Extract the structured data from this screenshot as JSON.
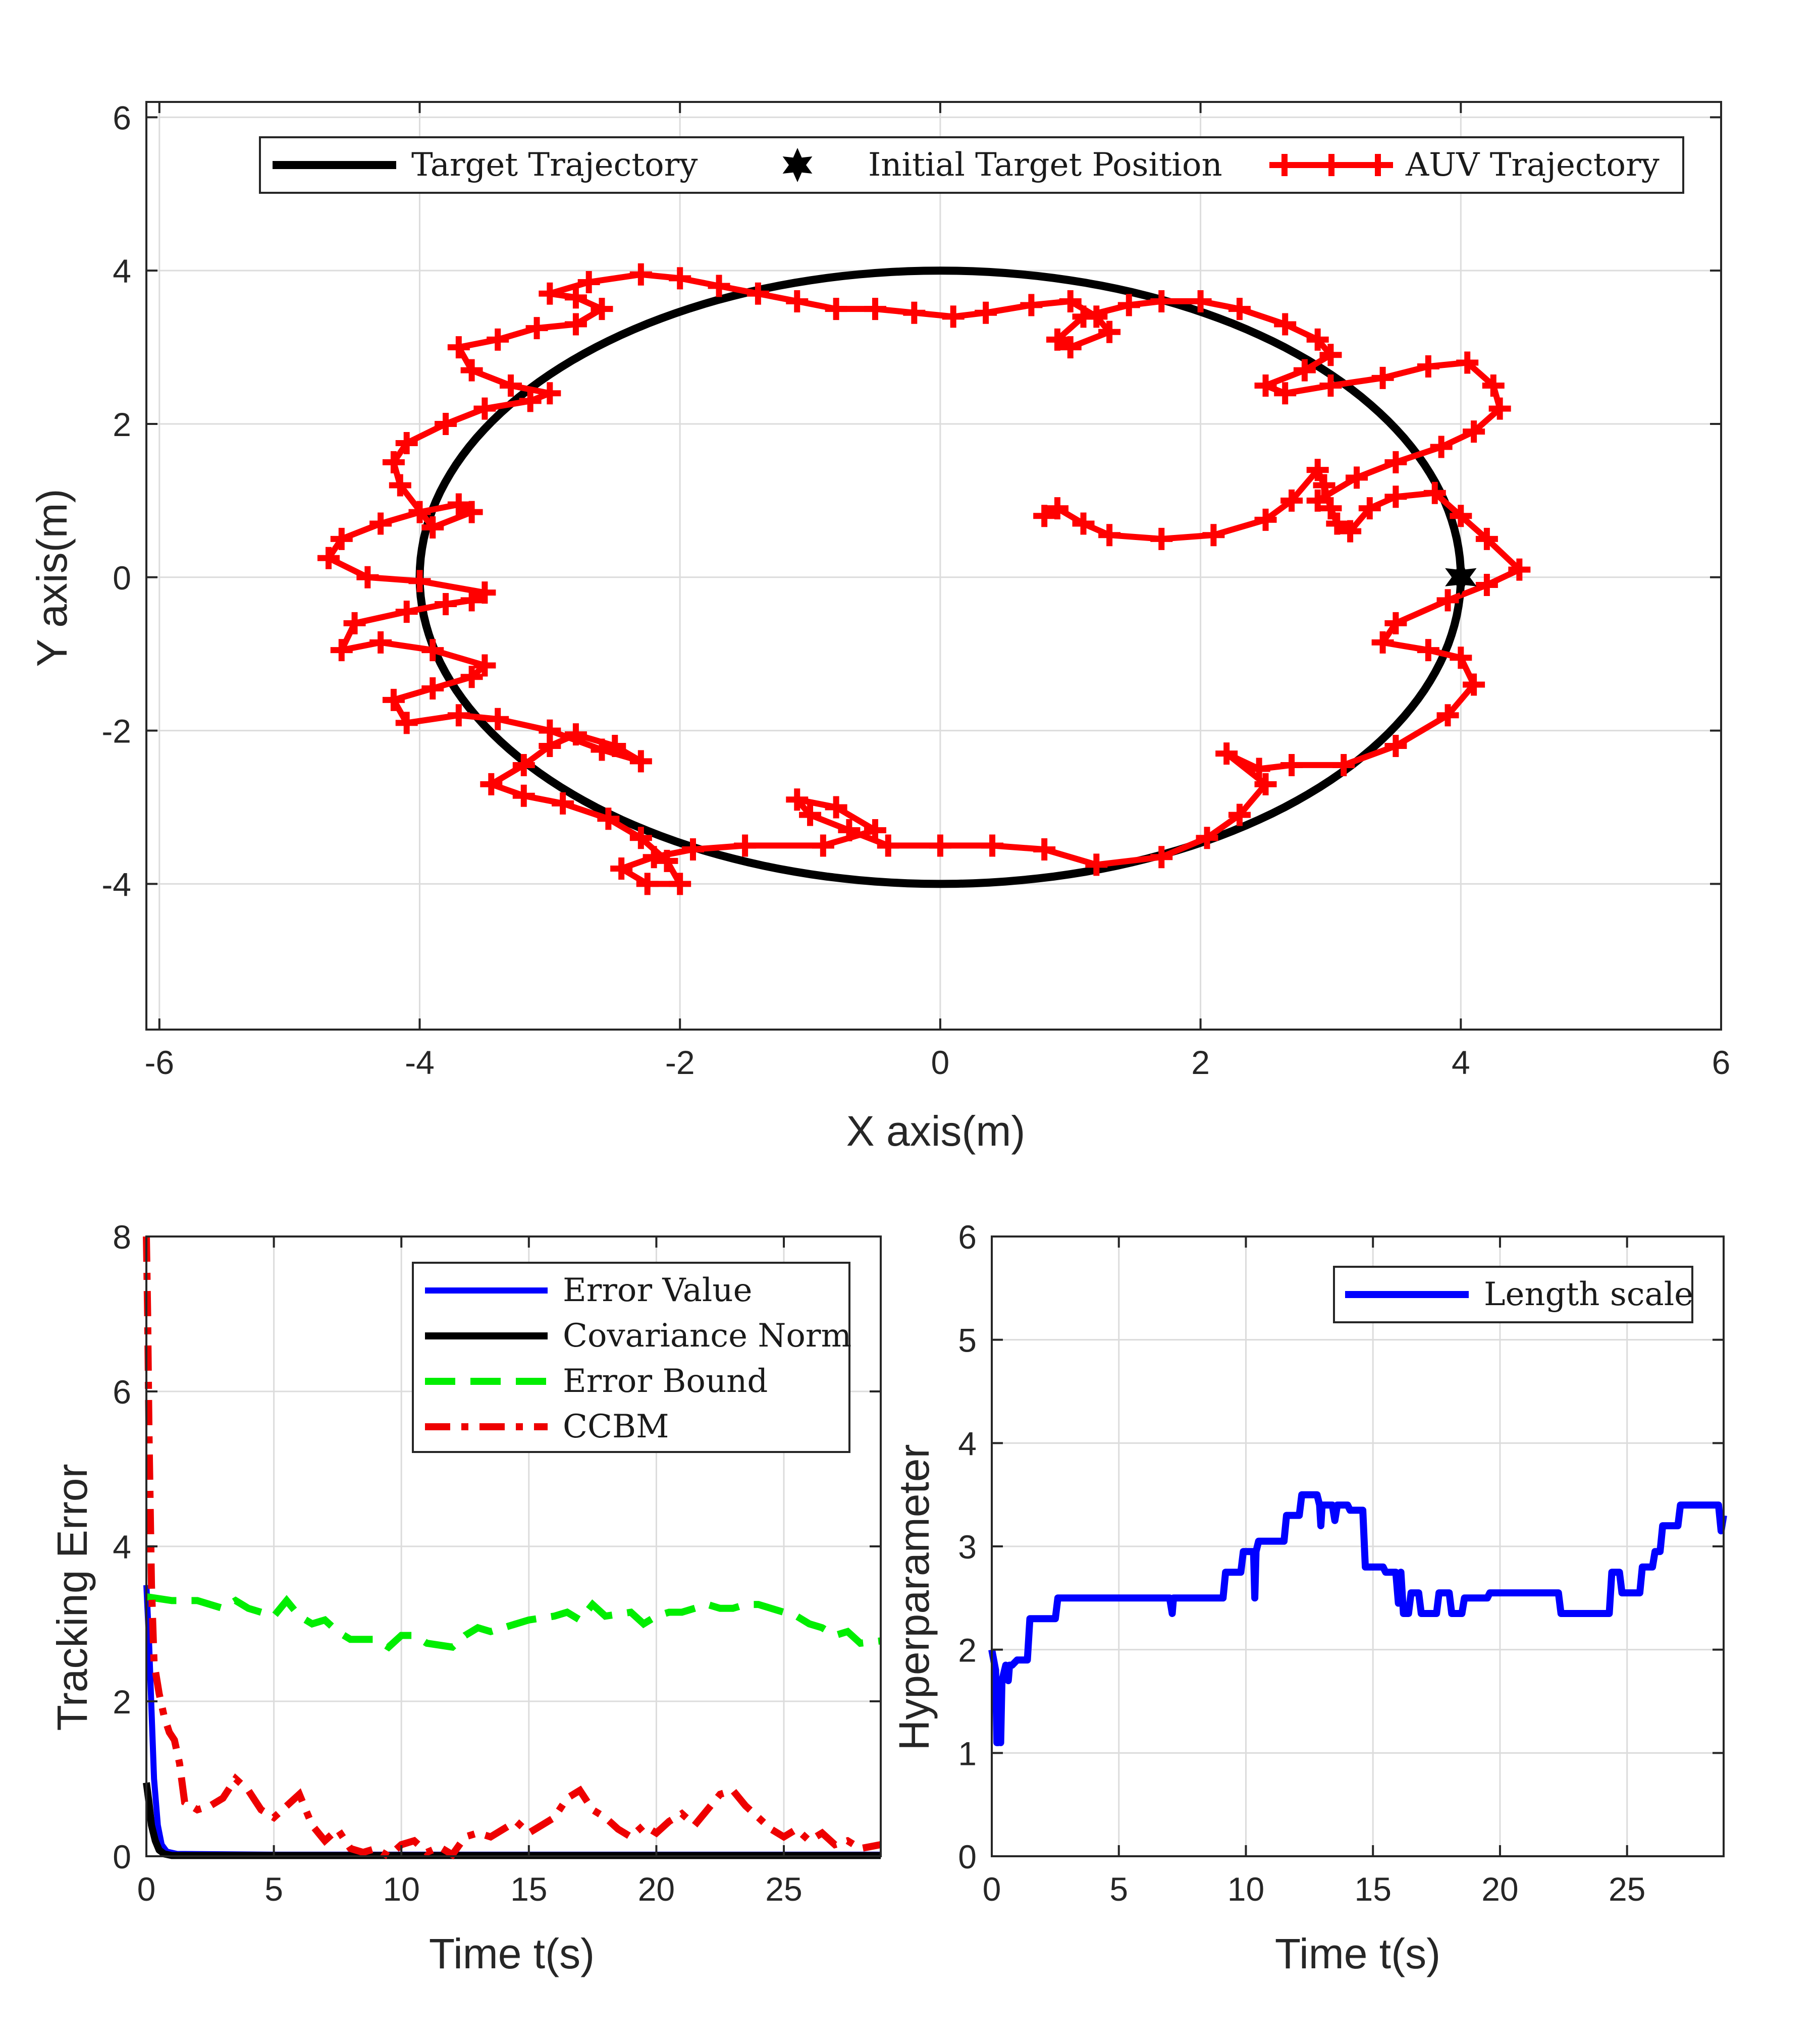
{
  "chart_data": [
    {
      "id": "trajectory",
      "type": "line",
      "xlabel": "X axis(m)",
      "ylabel": "Y axis(m)",
      "xlim": [
        -6.1,
        6
      ],
      "ylim": [
        -5.9,
        6.2
      ],
      "xticks": [
        -6,
        -4,
        -2,
        0,
        2,
        4,
        6
      ],
      "yticks": [
        -4,
        -2,
        0,
        2,
        4,
        6
      ],
      "xtick_labels": [
        "-6",
        "-4",
        "-2",
        "0",
        "2",
        "4",
        "6"
      ],
      "ytick_labels": [
        "-4",
        "-2",
        "0",
        "2",
        "4",
        "6"
      ],
      "grid": true,
      "legend": {
        "position": "top",
        "entries": [
          "Target Trajectory",
          "Initial Target Position",
          "AUV Trajectory"
        ]
      },
      "series": [
        {
          "name": "Target Trajectory",
          "color": "#000000",
          "shape": "circle",
          "radius": 4
        },
        {
          "name": "Initial Target Position",
          "color": "#000000",
          "point": [
            4,
            0
          ]
        },
        {
          "name": "AUV Trajectory",
          "color": "#ff0000",
          "x": [
            0.8,
            0.9,
            1.1,
            1.3,
            1.7,
            2.1,
            2.5,
            2.7,
            2.9,
            2.95,
            3.0,
            3.05,
            3.15,
            3.3,
            3.5,
            3.8,
            4.0,
            4.2,
            4.45,
            4.2,
            3.9,
            3.5,
            3.4,
            3.75,
            4.0,
            4.1,
            3.9,
            3.5,
            3.1,
            2.7,
            2.45,
            2.2,
            2.5,
            2.3,
            2.05,
            1.7,
            1.2,
            0.8,
            0.4,
            0.0,
            -0.4,
            -0.7,
            -1.0,
            -1.1,
            -0.8,
            -0.5,
            -0.9,
            -1.5,
            -1.9,
            -2.2,
            -2.45,
            -2.25,
            -2.0,
            -2.1,
            -2.3,
            -2.55,
            -2.9,
            -3.2,
            -3.45,
            -3.2,
            -3.0,
            -2.8,
            -2.5,
            -2.3,
            -2.6,
            -3.0,
            -3.4,
            -3.7,
            -4.1,
            -4.2,
            -3.9,
            -3.6,
            -3.5,
            -3.9,
            -4.3,
            -4.6,
            -4.5,
            -4.1,
            -3.8,
            -3.6,
            -3.5,
            -4.0,
            -4.4,
            -4.7,
            -4.6,
            -4.3,
            -4.0,
            -3.7,
            -3.6,
            -3.9,
            -4.15,
            -4.2,
            -4.1,
            -3.8,
            -3.5,
            -3.15,
            -3.0,
            -3.3,
            -3.6,
            -3.7,
            -3.4,
            -3.1,
            -2.8,
            -2.6,
            -2.8,
            -3.0,
            -2.7,
            -2.3,
            -2.0,
            -1.7,
            -1.4,
            -1.1,
            -0.8,
            -0.5,
            -0.2,
            0.1,
            0.35,
            0.7,
            1.0,
            1.2,
            1.3,
            1.0,
            0.9,
            1.1,
            1.45,
            1.7,
            2.0,
            2.3,
            2.65,
            2.9,
            3.0,
            2.8,
            2.5,
            2.65,
            3.0,
            3.4,
            3.75,
            4.05,
            4.25,
            4.3,
            4.1,
            3.85,
            3.5,
            3.2,
            2.9
          ],
          "y": [
            0.8,
            0.9,
            0.7,
            0.55,
            0.5,
            0.55,
            0.75,
            1.0,
            1.4,
            1.2,
            0.9,
            0.7,
            0.6,
            0.9,
            1.05,
            1.1,
            0.8,
            0.5,
            0.1,
            -0.1,
            -0.3,
            -0.6,
            -0.85,
            -0.95,
            -1.05,
            -1.4,
            -1.8,
            -2.2,
            -2.45,
            -2.45,
            -2.5,
            -2.3,
            -2.7,
            -3.1,
            -3.4,
            -3.65,
            -3.75,
            -3.55,
            -3.5,
            -3.5,
            -3.5,
            -3.3,
            -3.1,
            -2.9,
            -3.0,
            -3.3,
            -3.5,
            -3.5,
            -3.55,
            -3.65,
            -3.8,
            -4.0,
            -4.0,
            -3.7,
            -3.4,
            -3.15,
            -2.95,
            -2.85,
            -2.7,
            -2.45,
            -2.2,
            -2.05,
            -2.2,
            -2.4,
            -2.25,
            -2.0,
            -1.85,
            -1.8,
            -1.9,
            -1.6,
            -1.45,
            -1.3,
            -1.15,
            -0.95,
            -0.85,
            -0.95,
            -0.6,
            -0.45,
            -0.35,
            -0.3,
            -0.2,
            -0.05,
            0.0,
            0.25,
            0.5,
            0.7,
            0.85,
            0.95,
            0.85,
            0.65,
            1.2,
            1.5,
            1.75,
            2.0,
            2.2,
            2.3,
            2.4,
            2.5,
            2.7,
            3.0,
            3.1,
            3.25,
            3.3,
            3.5,
            3.65,
            3.7,
            3.85,
            3.95,
            3.9,
            3.8,
            3.7,
            3.6,
            3.5,
            3.5,
            3.45,
            3.4,
            3.45,
            3.55,
            3.6,
            3.4,
            3.2,
            3.0,
            3.1,
            3.4,
            3.55,
            3.6,
            3.6,
            3.5,
            3.3,
            3.1,
            2.9,
            2.7,
            2.5,
            2.4,
            2.5,
            2.6,
            2.75,
            2.8,
            2.5,
            2.2,
            1.9,
            1.7,
            1.5,
            1.3,
            1.0
          ]
        }
      ]
    },
    {
      "id": "tracking-error",
      "type": "line",
      "xlabel": "Time t(s)",
      "ylabel": "Tracking Error",
      "xlim": [
        0,
        28.8
      ],
      "ylim": [
        0,
        8
      ],
      "xticks": [
        0,
        5,
        10,
        15,
        20,
        25
      ],
      "yticks": [
        0,
        2,
        4,
        6,
        8
      ],
      "xtick_labels": [
        "0",
        "5",
        "10",
        "15",
        "20",
        "25"
      ],
      "ytick_labels": [
        "0",
        "2",
        "4",
        "6",
        "8"
      ],
      "grid": true,
      "legend": {
        "position": "top-right",
        "entries": [
          "Error Value",
          "Covariance Norm",
          "Error Bound",
          "CCBM"
        ]
      },
      "series": [
        {
          "name": "Error Value",
          "color": "#0000ff",
          "style": "solid",
          "x": [
            0,
            0.1,
            0.2,
            0.3,
            0.45,
            0.6,
            0.8,
            1.2,
            5,
            28.8
          ],
          "y": [
            3.5,
            2.8,
            1.9,
            1.0,
            0.4,
            0.15,
            0.06,
            0.03,
            0.02,
            0.02
          ]
        },
        {
          "name": "Covariance Norm",
          "color": "#000000",
          "style": "solid",
          "x": [
            0,
            0.1,
            0.2,
            0.35,
            0.5,
            0.7,
            1.0,
            28.8
          ],
          "y": [
            0.95,
            0.7,
            0.4,
            0.2,
            0.08,
            0.03,
            0.01,
            0.01
          ]
        },
        {
          "name": "Error Bound",
          "color": "#00ee00",
          "style": "dashed",
          "x": [
            0,
            1,
            2,
            3,
            3.5,
            4,
            5,
            5.5,
            6,
            6.5,
            7,
            7.5,
            8,
            9,
            9.5,
            10,
            10.5,
            11,
            12,
            12.5,
            13,
            13.5,
            14,
            15,
            16,
            16.5,
            17,
            17.5,
            18,
            19,
            19.5,
            20,
            20.5,
            21,
            22,
            22.5,
            23,
            23.5,
            24,
            25,
            25.5,
            26,
            26.5,
            27,
            27.5,
            28,
            28.8
          ],
          "y": [
            3.35,
            3.3,
            3.3,
            3.2,
            3.3,
            3.2,
            3.1,
            3.3,
            3.1,
            3.0,
            3.05,
            2.9,
            2.8,
            2.8,
            2.7,
            2.85,
            2.85,
            2.75,
            2.7,
            2.85,
            2.95,
            2.9,
            2.95,
            3.05,
            3.1,
            3.15,
            3.05,
            3.25,
            3.1,
            3.15,
            3.0,
            3.1,
            3.15,
            3.15,
            3.25,
            3.2,
            3.2,
            3.25,
            3.25,
            3.15,
            3.1,
            3.0,
            2.95,
            2.85,
            2.9,
            2.75,
            2.78
          ]
        },
        {
          "name": "CCBM",
          "color": "#ee0000",
          "style": "dashdot",
          "x": [
            0,
            0.05,
            0.1,
            0.2,
            0.3,
            0.5,
            0.7,
            0.9,
            1.1,
            1.3,
            1.5,
            2,
            2.5,
            3,
            3.5,
            4,
            4.5,
            5,
            5.5,
            6,
            6.5,
            7,
            7.5,
            8,
            8.5,
            9,
            9.5,
            10,
            10.5,
            11,
            11.5,
            12,
            12.5,
            13,
            13.5,
            14,
            14.5,
            15,
            15.5,
            16,
            16.5,
            17,
            17.5,
            18,
            18.5,
            19,
            19.5,
            20,
            20.5,
            21,
            21.5,
            22,
            22.5,
            23,
            23.5,
            24,
            24.5,
            25,
            25.5,
            26,
            26.5,
            27,
            27.5,
            28,
            28.8
          ],
          "y": [
            8.0,
            7.0,
            5.5,
            3.5,
            2.5,
            2.1,
            1.8,
            1.6,
            1.5,
            1.2,
            0.7,
            0.6,
            0.65,
            0.75,
            1.0,
            0.85,
            0.6,
            0.5,
            0.65,
            0.8,
            0.4,
            0.2,
            0.35,
            0.1,
            0.05,
            0.1,
            0.0,
            0.15,
            0.2,
            0.05,
            0.12,
            0.02,
            0.25,
            0.3,
            0.25,
            0.35,
            0.45,
            0.3,
            0.4,
            0.5,
            0.75,
            0.85,
            0.6,
            0.5,
            0.35,
            0.25,
            0.4,
            0.3,
            0.45,
            0.55,
            0.4,
            0.6,
            0.8,
            0.85,
            0.65,
            0.5,
            0.35,
            0.25,
            0.35,
            0.2,
            0.3,
            0.15,
            0.2,
            0.1,
            0.15
          ]
        }
      ]
    },
    {
      "id": "hyperparameter",
      "type": "line",
      "xlabel": "Time t(s)",
      "ylabel": "Hyperparameter",
      "xlim": [
        0,
        28.8
      ],
      "ylim": [
        0,
        6
      ],
      "xticks": [
        0,
        5,
        10,
        15,
        20,
        25
      ],
      "yticks": [
        0,
        1,
        2,
        3,
        4,
        5,
        6
      ],
      "xtick_labels": [
        "0",
        "5",
        "10",
        "15",
        "20",
        "25"
      ],
      "ytick_labels": [
        "0",
        "1",
        "2",
        "3",
        "4",
        "5",
        "6"
      ],
      "grid": true,
      "legend": {
        "position": "top-right",
        "entries": [
          "Length scale"
        ]
      },
      "series": [
        {
          "name": "Length scale",
          "color": "#0000ff",
          "style": "solid",
          "x": [
            0,
            0.15,
            0.2,
            0.25,
            0.3,
            0.35,
            0.4,
            0.45,
            0.55,
            0.65,
            0.7,
            0.8,
            1.0,
            1.4,
            1.5,
            2.5,
            2.6,
            7.0,
            7.1,
            7.15,
            7.2,
            9.1,
            9.2,
            9.8,
            9.9,
            10.3,
            10.35,
            10.4,
            10.5,
            11.5,
            11.6,
            12.1,
            12.2,
            12.8,
            12.9,
            12.95,
            13.0,
            13.4,
            13.5,
            13.6,
            13.7,
            14.0,
            14.1,
            14.6,
            14.7,
            15.4,
            15.5,
            15.9,
            16.0,
            16.1,
            16.2,
            16.4,
            16.5,
            16.8,
            16.9,
            17.5,
            17.6,
            18.0,
            18.1,
            18.5,
            18.6,
            19.5,
            19.6,
            22.3,
            22.4,
            24.3,
            24.4,
            24.7,
            24.8,
            25.5,
            25.6,
            26.0,
            26.1,
            26.3,
            26.4,
            27.0,
            27.1,
            28.6,
            28.7,
            28.8
          ],
          "y": [
            2.0,
            1.8,
            1.1,
            1.1,
            1.45,
            1.1,
            1.7,
            1.75,
            1.85,
            1.7,
            1.85,
            1.85,
            1.9,
            1.9,
            2.3,
            2.3,
            2.5,
            2.5,
            2.35,
            2.5,
            2.5,
            2.5,
            2.75,
            2.75,
            2.95,
            2.95,
            2.5,
            2.95,
            3.05,
            3.05,
            3.3,
            3.3,
            3.5,
            3.5,
            3.4,
            3.2,
            3.4,
            3.4,
            3.25,
            3.4,
            3.4,
            3.4,
            3.35,
            3.35,
            2.8,
            2.8,
            2.75,
            2.75,
            2.45,
            2.75,
            2.35,
            2.35,
            2.55,
            2.55,
            2.35,
            2.35,
            2.55,
            2.55,
            2.35,
            2.35,
            2.5,
            2.5,
            2.55,
            2.55,
            2.35,
            2.35,
            2.75,
            2.75,
            2.55,
            2.55,
            2.8,
            2.8,
            2.95,
            2.95,
            3.2,
            3.2,
            3.4,
            3.4,
            3.15,
            3.3
          ]
        }
      ]
    }
  ]
}
